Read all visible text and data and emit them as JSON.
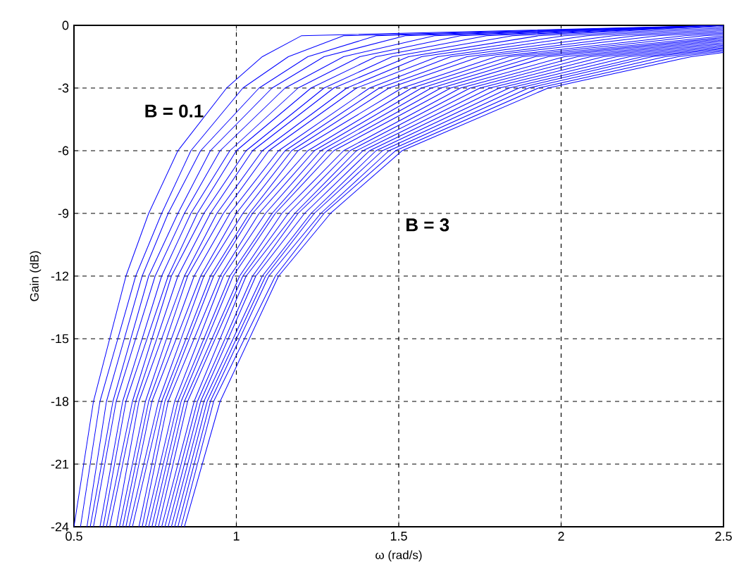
{
  "chart_data": {
    "type": "line",
    "xlabel": "ω (rad/s)",
    "ylabel": "Gain (dB)",
    "xlim": [
      0.5,
      2.5
    ],
    "xticks": [
      0.5,
      1,
      1.5,
      2,
      2.5
    ],
    "ylim": [
      -24,
      0
    ],
    "yticks": [
      -24,
      -21,
      -18,
      -15,
      -12,
      -9,
      -6,
      -3,
      0
    ],
    "grid": true,
    "marker": "none",
    "line_style": "solid",
    "annotations": [
      "B = 0.1",
      "B = 3"
    ],
    "series": [
      {
        "color": "#0000ff",
        "x": [
          0.5,
          0.56,
          0.66,
          0.73,
          0.82,
          0.97,
          1.08,
          1.2,
          2.5
        ],
        "values": [
          -24,
          -18,
          -12,
          -9,
          -6,
          -3,
          -1.5,
          -0.5,
          0
        ]
      },
      {
        "color": "#0000ff",
        "x": [
          0.52,
          0.58,
          0.69,
          0.77,
          0.86,
          1.02,
          1.16,
          1.33,
          2.5
        ],
        "values": [
          -24,
          -18,
          -12,
          -9,
          -6,
          -3,
          -1.5,
          -0.5,
          0
        ]
      },
      {
        "color": "#0000ff",
        "x": [
          0.54,
          0.6,
          0.71,
          0.79,
          0.89,
          1.07,
          1.22,
          1.43,
          2.5
        ],
        "values": [
          -24,
          -18,
          -12,
          -9,
          -6,
          -3,
          -1.5,
          -0.5,
          0
        ]
      },
      {
        "color": "#0000ff",
        "x": [
          0.55,
          0.62,
          0.73,
          0.82,
          0.92,
          1.11,
          1.27,
          1.52,
          2.5
        ],
        "values": [
          -24,
          -18,
          -12,
          -9,
          -6,
          -3,
          -1.5,
          -0.5,
          0
        ]
      },
      {
        "color": "#0000ff",
        "x": [
          0.56,
          0.63,
          0.75,
          0.84,
          0.95,
          1.15,
          1.33,
          1.61,
          2.5
        ],
        "values": [
          -24,
          -18,
          -12,
          -9,
          -6,
          -3,
          -1.5,
          -0.5,
          0
        ]
      },
      {
        "color": "#0000ff",
        "x": [
          0.58,
          0.65,
          0.77,
          0.86,
          0.98,
          1.19,
          1.38,
          1.69,
          2.5
        ],
        "values": [
          -24,
          -18,
          -12,
          -9,
          -6,
          -3,
          -1.5,
          -0.5,
          0
        ]
      },
      {
        "color": "#0000ff",
        "x": [
          0.59,
          0.66,
          0.79,
          0.88,
          1.0,
          1.23,
          1.43,
          1.77,
          2.5
        ],
        "values": [
          -24,
          -18,
          -12,
          -9,
          -6,
          -3,
          -1.5,
          -0.5,
          0
        ]
      },
      {
        "color": "#0000ff",
        "x": [
          0.6,
          0.68,
          0.8,
          0.9,
          1.03,
          1.27,
          1.48,
          1.85,
          2.5
        ],
        "values": [
          -24,
          -18,
          -12,
          -9,
          -6,
          -3,
          -1.5,
          -0.5,
          0
        ]
      },
      {
        "color": "#0000ff",
        "x": [
          0.61,
          0.69,
          0.82,
          0.92,
          1.05,
          1.3,
          1.53,
          1.93,
          2.5
        ],
        "values": [
          -24,
          -18,
          -12,
          -9,
          -6,
          -3,
          -1.5,
          -0.5,
          0
        ]
      },
      {
        "color": "#0000ff",
        "x": [
          0.63,
          0.7,
          0.84,
          0.94,
          1.08,
          1.34,
          1.57,
          2.01,
          2.5
        ],
        "values": [
          -24,
          -18,
          -12,
          -9,
          -6,
          -3,
          -1.5,
          -0.5,
          -0.05
        ]
      },
      {
        "color": "#0000ff",
        "x": [
          0.64,
          0.72,
          0.85,
          0.96,
          1.1,
          1.37,
          1.62,
          2.08,
          2.5
        ],
        "values": [
          -24,
          -18,
          -12,
          -9,
          -6,
          -3,
          -1.5,
          -0.5,
          -0.12
        ]
      },
      {
        "color": "#0000ff",
        "x": [
          0.65,
          0.73,
          0.87,
          0.98,
          1.13,
          1.41,
          1.66,
          2.16,
          2.5
        ],
        "values": [
          -24,
          -18,
          -12,
          -9,
          -6,
          -3,
          -1.5,
          -0.5,
          -0.18
        ]
      },
      {
        "color": "#0000ff",
        "x": [
          0.66,
          0.74,
          0.89,
          1.0,
          1.15,
          1.44,
          1.71,
          2.23,
          2.5
        ],
        "values": [
          -24,
          -18,
          -12,
          -9,
          -6,
          -3,
          -1.5,
          -0.5,
          -0.25
        ]
      },
      {
        "color": "#0000ff",
        "x": [
          0.67,
          0.76,
          0.9,
          1.02,
          1.17,
          1.47,
          1.75,
          2.3,
          2.5
        ],
        "values": [
          -24,
          -18,
          -12,
          -9,
          -6,
          -3,
          -1.5,
          -0.5,
          -0.32
        ]
      },
      {
        "color": "#0000ff",
        "x": [
          0.68,
          0.77,
          0.92,
          1.04,
          1.19,
          1.51,
          1.8,
          2.38,
          2.5
        ],
        "values": [
          -24,
          -18,
          -12,
          -9,
          -6,
          -3,
          -1.5,
          -0.5,
          -0.38
        ]
      },
      {
        "color": "#0000ff",
        "x": [
          0.7,
          0.78,
          0.93,
          1.05,
          1.22,
          1.54,
          1.84,
          2.44,
          2.5
        ],
        "values": [
          -24,
          -18,
          -12,
          -9,
          -6,
          -3,
          -1.5,
          -0.5,
          -0.45
        ]
      },
      {
        "color": "#0000ff",
        "x": [
          0.71,
          0.79,
          0.95,
          1.07,
          1.24,
          1.57,
          1.88,
          2.5
        ],
        "values": [
          -24,
          -18,
          -12,
          -9,
          -6,
          -3,
          -1.5,
          -0.51
        ]
      },
      {
        "color": "#0000ff",
        "x": [
          0.72,
          0.81,
          0.96,
          1.09,
          1.26,
          1.6,
          1.92,
          2.5
        ],
        "values": [
          -24,
          -18,
          -12,
          -9,
          -6,
          -3,
          -1.5,
          -0.58
        ]
      },
      {
        "color": "#0000ff",
        "x": [
          0.73,
          0.82,
          0.98,
          1.11,
          1.28,
          1.63,
          1.96,
          2.5
        ],
        "values": [
          -24,
          -18,
          -12,
          -9,
          -6,
          -3,
          -1.5,
          -0.64
        ]
      },
      {
        "color": "#0000ff",
        "x": [
          0.74,
          0.83,
          0.99,
          1.12,
          1.3,
          1.66,
          2.01,
          2.5
        ],
        "values": [
          -24,
          -18,
          -12,
          -9,
          -6,
          -3,
          -1.5,
          -0.7
        ]
      },
      {
        "color": "#0000ff",
        "x": [
          0.75,
          0.84,
          1.01,
          1.14,
          1.33,
          1.69,
          2.05,
          2.5
        ],
        "values": [
          -24,
          -18,
          -12,
          -9,
          -6,
          -3,
          -1.5,
          -0.76
        ]
      },
      {
        "color": "#0000ff",
        "x": [
          0.76,
          0.85,
          1.02,
          1.16,
          1.35,
          1.72,
          2.09,
          2.5
        ],
        "values": [
          -24,
          -18,
          -12,
          -9,
          -6,
          -3,
          -1.5,
          -0.83
        ]
      },
      {
        "color": "#0000ff",
        "x": [
          0.77,
          0.87,
          1.03,
          1.18,
          1.37,
          1.75,
          2.13,
          2.5
        ],
        "values": [
          -24,
          -18,
          -12,
          -9,
          -6,
          -3,
          -1.5,
          -0.89
        ]
      },
      {
        "color": "#0000ff",
        "x": [
          0.78,
          0.88,
          1.05,
          1.19,
          1.39,
          1.78,
          2.17,
          2.5
        ],
        "values": [
          -24,
          -18,
          -12,
          -9,
          -6,
          -3,
          -1.5,
          -0.95
        ]
      },
      {
        "color": "#0000ff",
        "x": [
          0.79,
          0.89,
          1.06,
          1.21,
          1.41,
          1.81,
          2.21,
          2.5
        ],
        "values": [
          -24,
          -18,
          -12,
          -9,
          -6,
          -3,
          -1.5,
          -1.01
        ]
      },
      {
        "color": "#0000ff",
        "x": [
          0.8,
          0.9,
          1.08,
          1.23,
          1.43,
          1.84,
          2.25,
          2.5
        ],
        "values": [
          -24,
          -18,
          -12,
          -9,
          -6,
          -3,
          -1.5,
          -1.07
        ]
      },
      {
        "color": "#0000ff",
        "x": [
          0.81,
          0.91,
          1.09,
          1.24,
          1.45,
          1.87,
          2.28,
          2.5
        ],
        "values": [
          -24,
          -18,
          -12,
          -9,
          -6,
          -3,
          -1.5,
          -1.12
        ]
      },
      {
        "color": "#0000ff",
        "x": [
          0.82,
          0.92,
          1.1,
          1.26,
          1.47,
          1.9,
          2.32,
          2.5
        ],
        "values": [
          -24,
          -18,
          -12,
          -9,
          -6,
          -3,
          -1.5,
          -1.18
        ]
      },
      {
        "color": "#0000ff",
        "x": [
          0.83,
          0.93,
          1.12,
          1.27,
          1.49,
          1.93,
          2.36,
          2.5
        ],
        "values": [
          -24,
          -18,
          -12,
          -9,
          -6,
          -3,
          -1.5,
          -1.24
        ]
      },
      {
        "color": "#0000ff",
        "x": [
          0.84,
          0.95,
          1.13,
          1.29,
          1.51,
          1.96,
          2.4,
          2.5
        ],
        "values": [
          -24,
          -18,
          -12,
          -9,
          -6,
          -3,
          -1.5,
          -1.3
        ]
      }
    ]
  }
}
